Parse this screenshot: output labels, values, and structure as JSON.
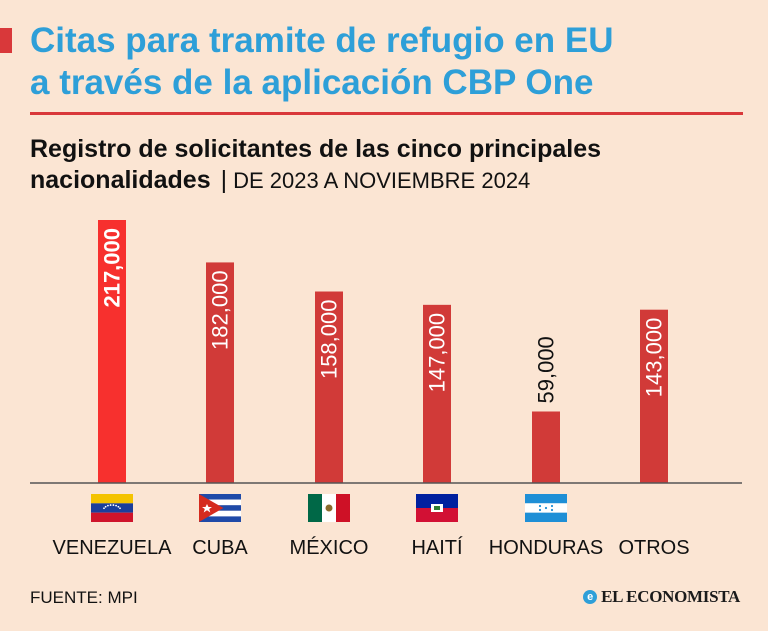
{
  "header": {
    "title_line1": "Citas para tramite de refugio en EU",
    "title_line2": "a través de la aplicación CBP One",
    "subtitle_bold_1": "Registro de solicitantes de las cinco principales",
    "subtitle_bold_2": "nacionalidades",
    "subtitle_separator": "|",
    "subtitle_range": "DE 2023 A NOVIEMBRE 2024"
  },
  "colors": {
    "title": "#2e9fd8",
    "accent": "#d9383a",
    "highlight_bar": "#f7302e",
    "bar": "#d13a38",
    "background": "#fbe5d3"
  },
  "chart_data": {
    "type": "bar",
    "categories": [
      "VENEZUELA",
      "CUBA",
      "MÉXICO",
      "HAITÍ",
      "HONDURAS",
      "OTROS"
    ],
    "values": [
      217000,
      182000,
      158000,
      147000,
      59000,
      143000
    ],
    "data_labels": [
      "217,000",
      "182,000",
      "158,000",
      "147,000",
      "59,000",
      "143,000"
    ],
    "highlight_index": 0,
    "flags": [
      "venezuela-flag-icon",
      "cuba-flag-icon",
      "mexico-flag-icon",
      "haiti-flag-icon",
      "honduras-flag-icon",
      null
    ],
    "ylim": [
      0,
      217000
    ],
    "grid": false
  },
  "footer": {
    "source": "FUENTE: MPI",
    "logo_text": "EL ECONOMISTA",
    "logo_mark": "e"
  }
}
